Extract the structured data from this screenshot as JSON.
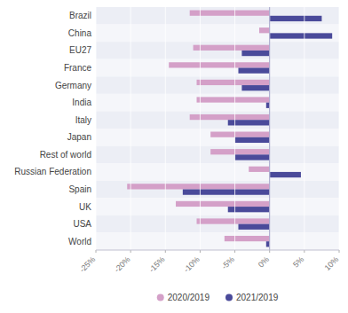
{
  "chart_data": {
    "type": "bar",
    "orientation": "horizontal",
    "categories": [
      "Brazil",
      "China",
      "EU27",
      "France",
      "Germany",
      "India",
      "Italy",
      "Japan",
      "Rest of world",
      "Russian Federation",
      "Spain",
      "UK",
      "USA",
      "World"
    ],
    "series": [
      {
        "name": "2020/2019",
        "color": "#d4a0c8",
        "values": [
          -11.5,
          -1.5,
          -11.0,
          -14.5,
          -10.5,
          -10.5,
          -11.5,
          -8.5,
          -8.5,
          -3.0,
          -20.5,
          -13.5,
          -10.5,
          -6.5
        ]
      },
      {
        "name": "2021/2019",
        "color": "#4a4a9a",
        "values": [
          7.5,
          9.0,
          -4.0,
          -4.5,
          -4.0,
          -0.5,
          -6.0,
          -5.0,
          -5.0,
          4.5,
          -12.5,
          -6.0,
          -4.5,
          -0.5
        ]
      }
    ],
    "xlim": [
      -25,
      10
    ],
    "xticks": [
      {
        "value": -25,
        "label": "-25%"
      },
      {
        "value": -20,
        "label": "-20%"
      },
      {
        "value": -15,
        "label": "-15%"
      },
      {
        "value": -10,
        "label": "-10%"
      },
      {
        "value": -5,
        "label": "-5%"
      },
      {
        "value": 0,
        "label": "0%"
      },
      {
        "value": 5,
        "label": "5%"
      },
      {
        "value": 10,
        "label": "10%"
      }
    ],
    "grid": true,
    "legend": "bottom"
  }
}
